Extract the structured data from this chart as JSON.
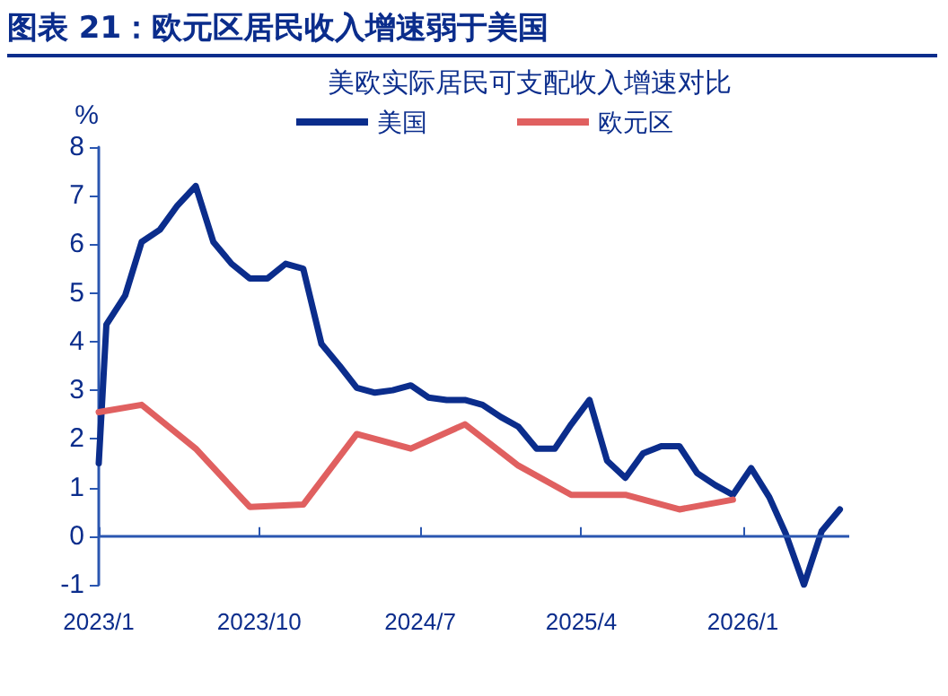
{
  "chart_data": {
    "type": "line",
    "title": "图表 21：欧元区居民收入增速弱于美国",
    "subtitle": "美欧实际居民可支配收入增速对比",
    "ylabel": "%",
    "series": [
      {
        "name": "美国",
        "color": "#0b2d8c",
        "x": [
          "2023-01-01",
          "2023-01-14",
          "2023-02-15",
          "2023-03-15",
          "2023-04-15",
          "2023-05-15",
          "2023-06-15",
          "2023-07-15",
          "2023-08-15",
          "2023-09-15",
          "2023-10-15",
          "2023-11-15",
          "2023-12-15",
          "2024-01-15",
          "2024-02-15",
          "2024-03-15",
          "2024-04-15",
          "2024-05-15",
          "2024-06-15",
          "2024-07-15",
          "2024-08-15",
          "2024-09-15",
          "2024-10-15",
          "2024-11-15",
          "2024-12-15",
          "2025-01-15",
          "2025-02-15",
          "2025-03-15",
          "2025-04-15",
          "2025-05-15",
          "2025-06-15",
          "2025-07-15",
          "2025-08-15",
          "2025-09-15",
          "2025-10-15",
          "2025-11-15",
          "2025-12-15",
          "2026-01-15",
          "2026-02-15",
          "2026-03-15",
          "2026-04-15",
          "2026-05-15",
          "2026-06-15"
        ],
        "values": [
          1.5,
          4.35,
          4.95,
          6.05,
          6.3,
          6.8,
          7.2,
          6.05,
          5.6,
          5.3,
          5.3,
          5.6,
          5.5,
          3.95,
          3.5,
          3.05,
          2.95,
          3.0,
          3.1,
          2.85,
          2.8,
          2.8,
          2.7,
          2.45,
          2.25,
          1.8,
          1.8,
          2.3,
          2.8,
          1.55,
          1.2,
          1.7,
          1.85,
          1.85,
          1.3,
          1.05,
          0.85,
          1.4,
          0.8,
          0.05,
          -1.0,
          0.1,
          0.55
        ]
      },
      {
        "name": "欧元区",
        "color": "#e06060",
        "x": [
          "2023-01-01",
          "2023-03-15",
          "2023-06-15",
          "2023-09-15",
          "2023-12-15",
          "2024-03-15",
          "2024-06-15",
          "2024-09-15",
          "2024-12-15",
          "2025-03-15",
          "2025-06-15",
          "2025-09-15",
          "2025-12-15"
        ],
        "values": [
          2.55,
          2.7,
          1.8,
          0.6,
          0.65,
          2.1,
          1.8,
          2.3,
          1.45,
          0.85,
          0.85,
          0.55,
          0.75
        ]
      }
    ],
    "xlim": [
      "2023-01-01",
      "2026-07-01"
    ],
    "xticks": [
      {
        "value": "2023-01-01",
        "label": "2023/1"
      },
      {
        "value": "2023-10-01",
        "label": "2023/10"
      },
      {
        "value": "2024-07-01",
        "label": "2024/7"
      },
      {
        "value": "2025-04-01",
        "label": "2025/4"
      },
      {
        "value": "2026-01-01",
        "label": "2026/1"
      }
    ],
    "ylim": [
      -1,
      8
    ],
    "yticks": [
      -1,
      0,
      1,
      2,
      3,
      4,
      5,
      6,
      7,
      8
    ],
    "ref_lines": [
      {
        "axis": "y",
        "value": 0,
        "color": "#2a56b0"
      }
    ],
    "grid": false,
    "legend": "top",
    "marker": "none",
    "line_style": "solid"
  }
}
